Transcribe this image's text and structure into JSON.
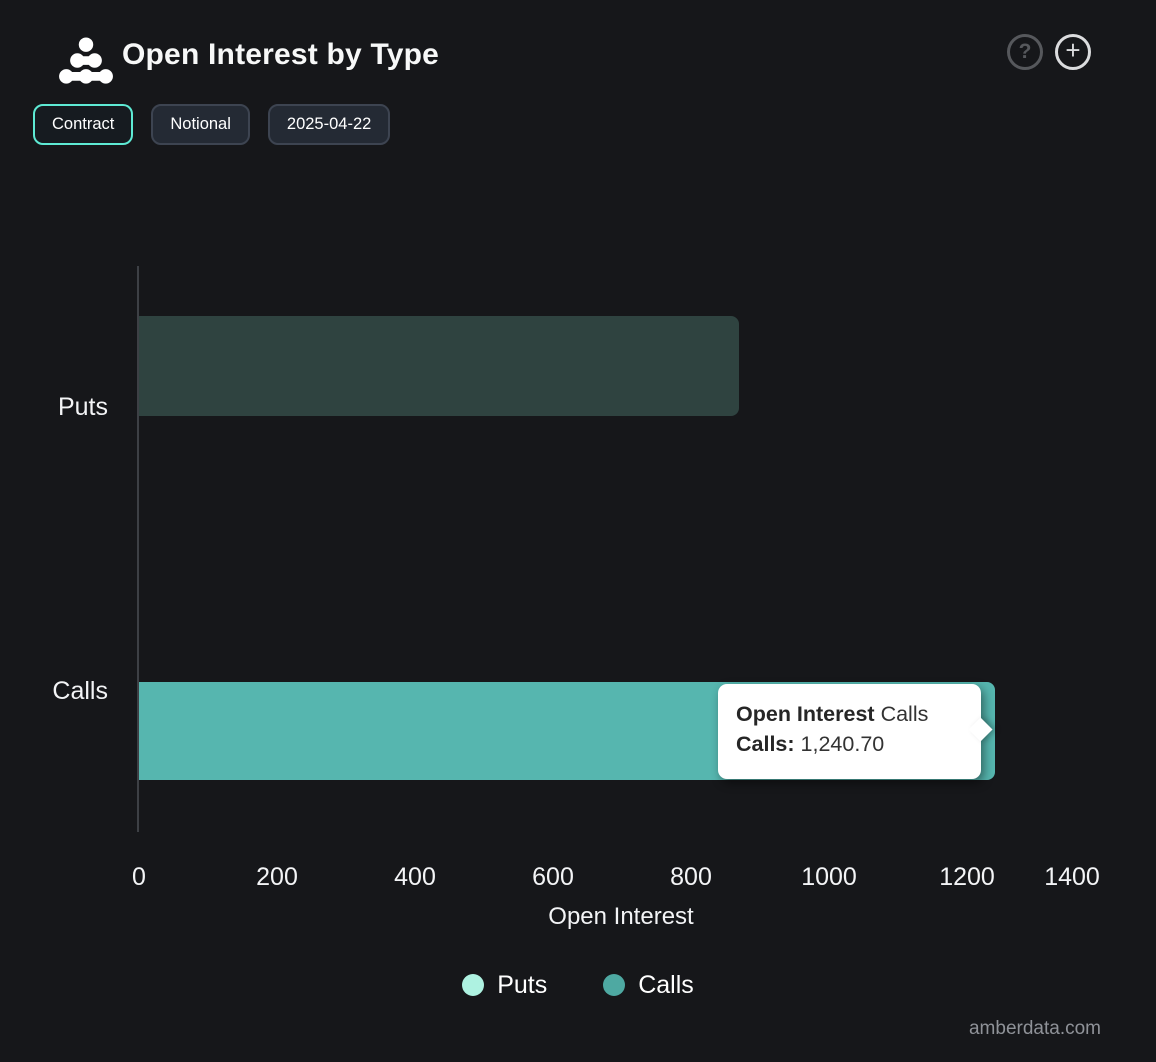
{
  "header": {
    "title": "Open Interest by Type",
    "help_glyph": "?",
    "add_glyph": "+"
  },
  "controls": {
    "buttons": [
      {
        "label": "Contract",
        "active": true
      },
      {
        "label": "Notional",
        "active": false
      },
      {
        "label": "2025-04-22",
        "active": false
      }
    ]
  },
  "chart_data": {
    "type": "bar",
    "orientation": "horizontal",
    "title": "Open Interest by Type",
    "categories": [
      "Puts",
      "Calls"
    ],
    "series": [
      {
        "name": "Puts",
        "category": "Puts",
        "value": 870,
        "legend_color": "#aef2e1",
        "bar_color": "#2f4340",
        "state": "dimmed"
      },
      {
        "name": "Calls",
        "category": "Calls",
        "value": 1240.7,
        "legend_color": "#4ea9a2",
        "bar_color": "#56b6af",
        "state": "hovered"
      }
    ],
    "xlabel": "Open Interest",
    "xlim": [
      0,
      1400
    ],
    "xticks": [
      0,
      200,
      400,
      600,
      800,
      1000,
      1200,
      1400
    ],
    "grid": false,
    "legend_position": "bottom",
    "tooltip": {
      "title_bold": "Open Interest",
      "title_regular": "Calls",
      "label_bold": "Calls:",
      "value": "1,240.70"
    }
  },
  "footer": {
    "watermark": "amberdata.com"
  }
}
